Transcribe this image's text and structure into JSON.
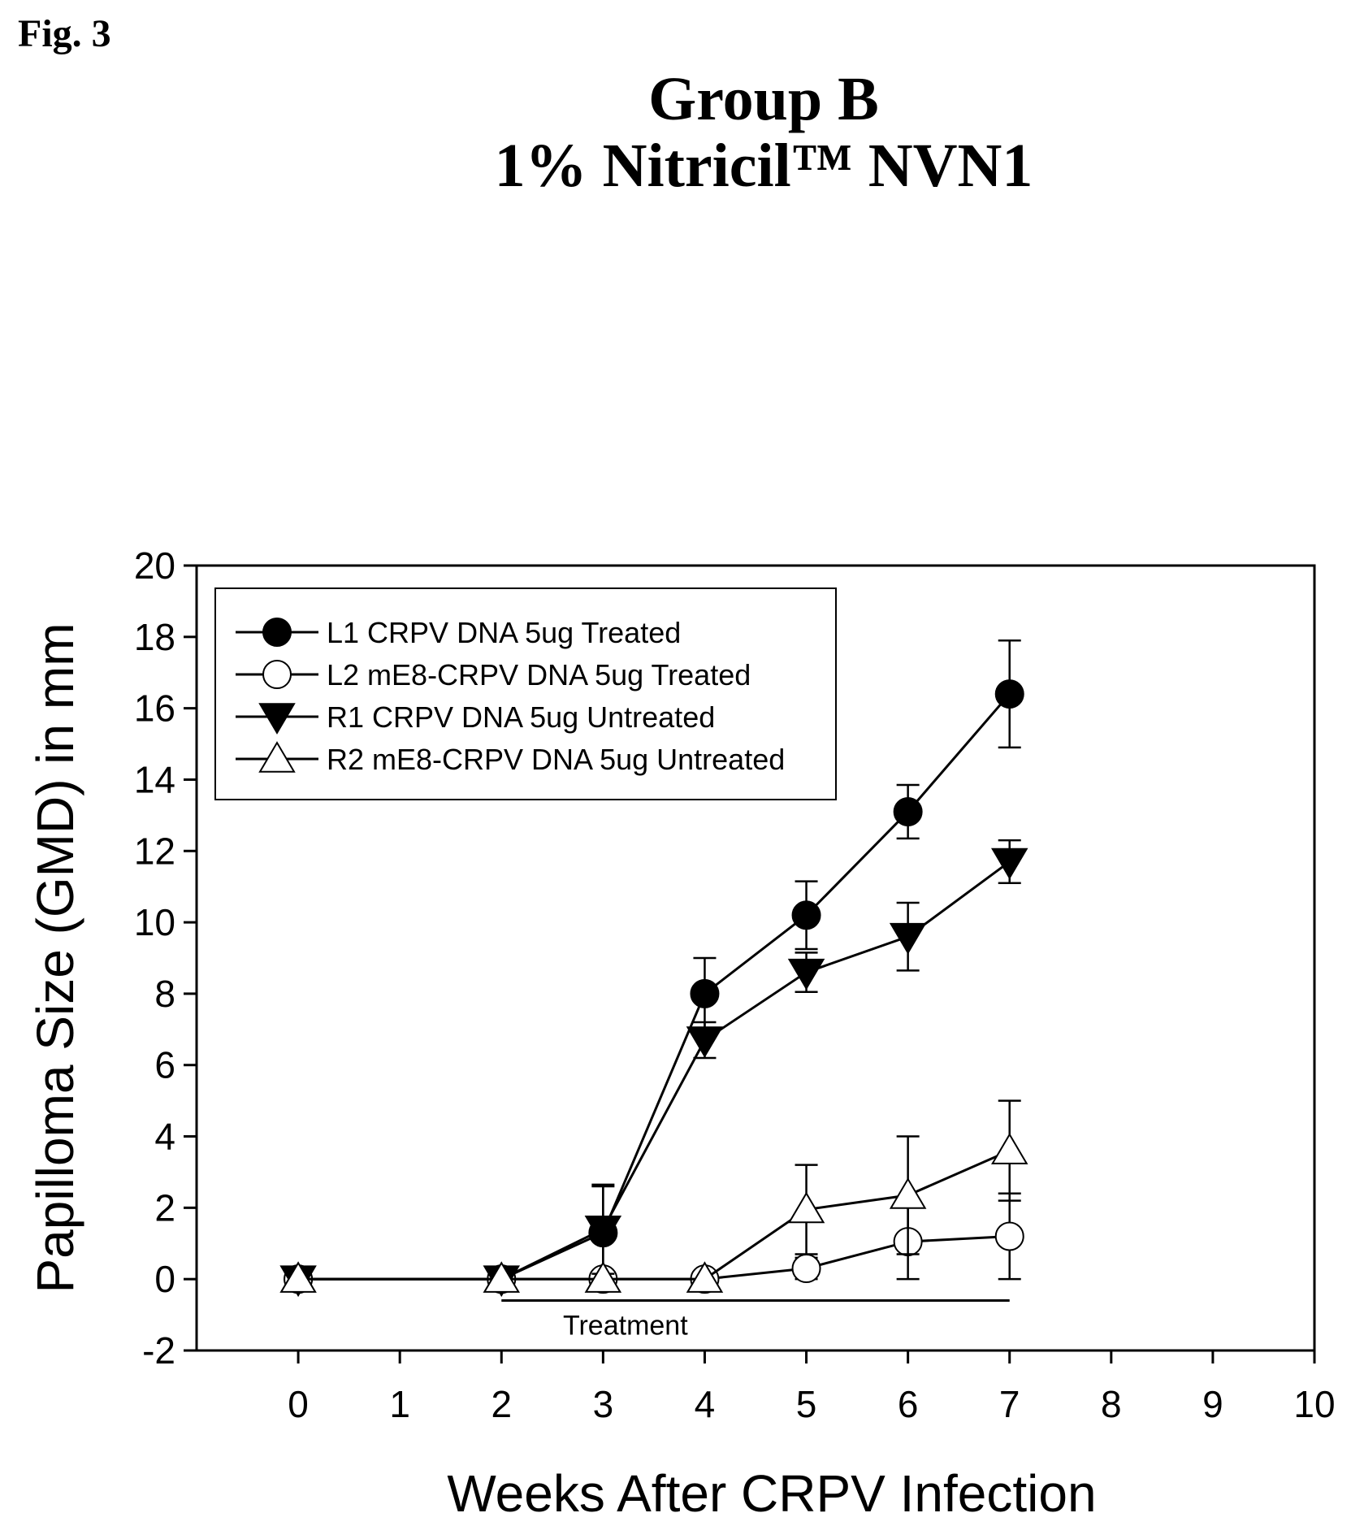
{
  "figure_label": "Fig. 3",
  "chart_data": {
    "type": "line",
    "title": [
      "Group B",
      "1% Nitricil™ NVN1"
    ],
    "xlabel": "Weeks After CRPV Infection",
    "ylabel": "Papilloma Size (GMD) in mm",
    "xlim": [
      -1,
      10
    ],
    "ylim": [
      -2,
      20
    ],
    "xticks": [
      0,
      1,
      2,
      3,
      4,
      5,
      6,
      7,
      8,
      9,
      10
    ],
    "yticks": [
      -2,
      0,
      2,
      4,
      6,
      8,
      10,
      12,
      14,
      16,
      18,
      20
    ],
    "grid": false,
    "legend_position": "top-left",
    "series": [
      {
        "name": "L1 CRPV DNA 5ug Treated",
        "marker": "filled-circle",
        "x": [
          0,
          2,
          3,
          4,
          5,
          6,
          7
        ],
        "y": [
          0,
          0,
          1.3,
          8.0,
          10.2,
          13.1,
          16.4
        ],
        "error": [
          0,
          0,
          1.3,
          1.0,
          0.95,
          0.75,
          1.5
        ]
      },
      {
        "name": "L2 mE8-CRPV DNA 5ug Treated",
        "marker": "open-circle",
        "x": [
          0,
          2,
          3,
          4,
          5,
          6,
          7
        ],
        "y": [
          0,
          0,
          0,
          0,
          0.3,
          1.05,
          1.2
        ],
        "error": [
          0,
          0,
          0,
          0,
          0.3,
          1.05,
          1.2
        ]
      },
      {
        "name": "R1 CRPV DNA 5ug Untreated",
        "marker": "filled-triangle-down",
        "x": [
          0,
          2,
          3,
          4,
          5,
          6,
          7
        ],
        "y": [
          0,
          0,
          1.4,
          6.7,
          8.6,
          9.6,
          11.7
        ],
        "error": [
          0,
          0,
          1.25,
          0.5,
          0.55,
          0.95,
          0.6
        ]
      },
      {
        "name": "R2 mE8-CRPV DNA 5ug Untreated",
        "marker": "open-triangle-up",
        "x": [
          0,
          2,
          3,
          4,
          5,
          6,
          7
        ],
        "y": [
          0,
          0,
          0,
          0,
          1.95,
          2.35,
          3.6
        ],
        "error": [
          0,
          0,
          0,
          0,
          1.25,
          1.65,
          1.4
        ]
      }
    ],
    "annotations": [
      {
        "text": "Treatment",
        "x_start": 2,
        "x_end": 7,
        "y": -0.6
      }
    ]
  }
}
